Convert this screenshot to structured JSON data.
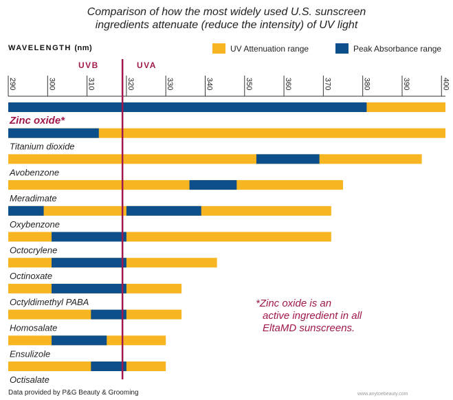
{
  "title_lines": [
    "Comparison of how the most widely used U.S. sunscreen",
    "ingredients attenuate (reduce the intensity) of UV light"
  ],
  "axis": {
    "label": "WAVELENGTH",
    "unit": "(nm)",
    "ticks": [
      "290",
      "300",
      "310",
      "320",
      "330",
      "340",
      "350",
      "360",
      "370",
      "380",
      "390",
      "400"
    ]
  },
  "bands": {
    "uvb": "UVB",
    "uva": "UVA"
  },
  "legend": {
    "attenuation": "UV Attenuation range",
    "peak": "Peak Absorbance range"
  },
  "colors": {
    "attenuation": "#f7b521",
    "peak": "#0d4f8b",
    "accent": "#a0174b"
  },
  "note_lines": [
    "*Zinc oxide is an",
    "active ingredient in all",
    "EltaMD sunscreens."
  ],
  "footer": "Data provided by P&G Beauty & Grooming",
  "watermark": "www.anytoebeauty.com",
  "chart_data": {
    "type": "bar",
    "subtype": "horizontal-range",
    "xlabel": "WAVELENGTH (nm)",
    "xlim": [
      290,
      401
    ],
    "divider_nm": 319,
    "series_names": [
      "UV Attenuation range",
      "Peak Absorbance range"
    ],
    "ingredients": [
      {
        "name": "Zinc oxide*",
        "attenuation": [
          290,
          401
        ],
        "peak": [
          290,
          381
        ]
      },
      {
        "name": "Titanium dioxide",
        "attenuation": [
          290,
          401
        ],
        "peak": [
          290,
          313
        ]
      },
      {
        "name": "Avobenzone",
        "attenuation": [
          290,
          395
        ],
        "peak": [
          353,
          369
        ]
      },
      {
        "name": "Meradimate",
        "attenuation": [
          290,
          375
        ],
        "peak": [
          336,
          348
        ]
      },
      {
        "name": "Oxybenzone",
        "attenuation": [
          290,
          372
        ],
        "peak": [
          [
            290,
            299
          ],
          [
            320,
            339
          ]
        ]
      },
      {
        "name": "Octocrylene",
        "attenuation": [
          290,
          372
        ],
        "peak": [
          301,
          320
        ]
      },
      {
        "name": "Octinoxate",
        "attenuation": [
          290,
          343
        ],
        "peak": [
          301,
          320
        ]
      },
      {
        "name": "Octyldimethyl PABA",
        "attenuation": [
          290,
          334
        ],
        "peak": [
          301,
          320
        ]
      },
      {
        "name": "Homosalate",
        "attenuation": [
          290,
          334
        ],
        "peak": [
          311,
          320
        ]
      },
      {
        "name": "Ensulizole",
        "attenuation": [
          290,
          330
        ],
        "peak": [
          301,
          315
        ]
      },
      {
        "name": "Octisalate",
        "attenuation": [
          290,
          330
        ],
        "peak": [
          311,
          320
        ]
      }
    ]
  }
}
